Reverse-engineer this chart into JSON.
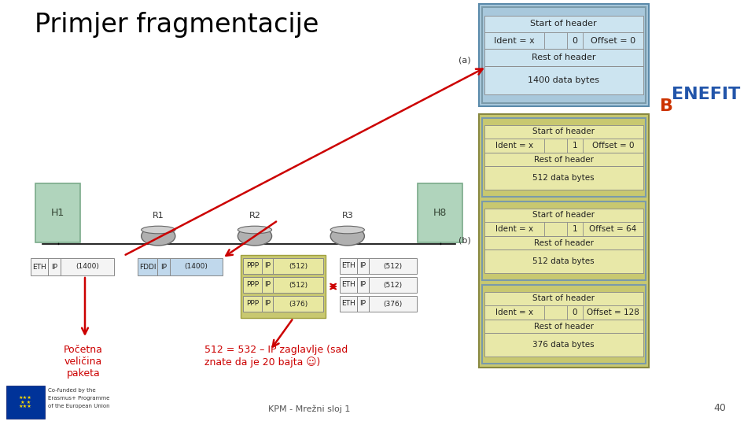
{
  "title": "Primjer fragmentacije",
  "bg_color": "#ffffff",
  "slide_footer": "KPM - Mrežni sloj 1",
  "slide_number": "40",
  "table_a": {
    "outer_bg": "#a8c8dc",
    "inner_bg": "#cce4f0",
    "header": "Start of header",
    "ident": "Ident = x",
    "flag": "0",
    "offset": "Offset = 0",
    "rest": "Rest of header",
    "data": "1400 data bytes",
    "label": "(a)"
  },
  "tables_b": {
    "outer_bg": "#c8c870",
    "inner_bg": "#e8e8a8",
    "label": "(b)",
    "packets": [
      {
        "flag": "1",
        "offset": "Offset = 0",
        "data": "512 data bytes"
      },
      {
        "flag": "1",
        "offset": "Offset = 64",
        "data": "512 data bytes"
      },
      {
        "flag": "0",
        "offset": "Offset = 128",
        "data": "376 data bytes"
      }
    ]
  },
  "host_color": "#b0d4bc",
  "host_edge": "#7aaa8a",
  "router_color": "#a0a0a0",
  "router_top": "#c8c8c8",
  "eth_bg": "#f4f4f4",
  "fddi_bg": "#c0d8ec",
  "ppp_bg": "#e8e8a0",
  "ppp_border": "#a0a040",
  "arrow_color": "#cc0000",
  "annotation1_text": "Početna\nveličina\npaketa",
  "annotation2_text": "512 = 532 – IP zaglavlje (sad\nznate da je 20 bajta ☺)",
  "annotation_color": "#cc0000"
}
